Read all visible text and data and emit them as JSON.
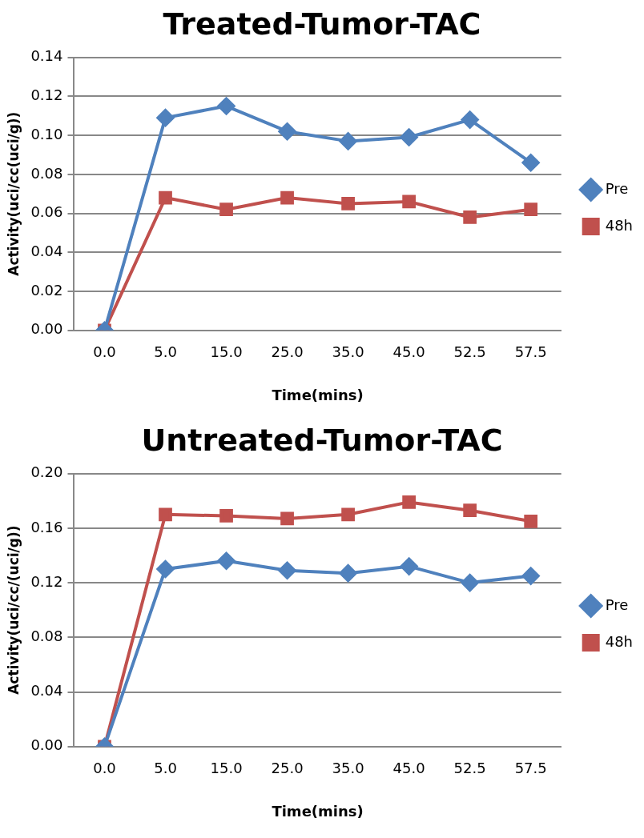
{
  "chart_data": [
    {
      "type": "line",
      "title": "Treated-Tumor-TAC",
      "xlabel": "Time(mins)",
      "ylabel": "Activity(uci/cc(uci/g))",
      "categories": [
        "0.0",
        "5.0",
        "15.0",
        "25.0",
        "35.0",
        "45.0",
        "52.5",
        "57.5"
      ],
      "ylim": [
        0,
        0.14
      ],
      "yticks": [
        {
          "value": 0,
          "label": "0.00"
        },
        {
          "value": 0.02,
          "label": "0.02"
        },
        {
          "value": 0.04,
          "label": "0.04"
        },
        {
          "value": 0.06,
          "label": "0.06"
        },
        {
          "value": 0.08,
          "label": "0.08"
        },
        {
          "value": 0.1,
          "label": "0.10"
        },
        {
          "value": 0.12,
          "label": "0.12"
        },
        {
          "value": 0.14,
          "label": "0.14"
        }
      ],
      "grid": "y",
      "legend": "right",
      "series": [
        {
          "name": "Pre",
          "color": "#4f81bd",
          "marker": "diamond",
          "values": [
            0,
            0.109,
            0.115,
            0.102,
            0.097,
            0.099,
            0.108,
            0.086
          ]
        },
        {
          "name": "48h",
          "color": "#c0504d",
          "marker": "square",
          "values": [
            0,
            0.068,
            0.062,
            0.068,
            0.065,
            0.066,
            0.058,
            0.062
          ]
        }
      ]
    },
    {
      "type": "line",
      "title": "Untreated-Tumor-TAC",
      "xlabel": "Time(mins)",
      "ylabel": "Activity(uci/cc/(uci/g))",
      "categories": [
        "0.0",
        "5.0",
        "15.0",
        "25.0",
        "35.0",
        "45.0",
        "52.5",
        "57.5"
      ],
      "ylim": [
        0,
        0.2
      ],
      "yticks": [
        {
          "value": 0,
          "label": "0.00"
        },
        {
          "value": 0.04,
          "label": "0.04"
        },
        {
          "value": 0.08,
          "label": "0.08"
        },
        {
          "value": 0.12,
          "label": "0.12"
        },
        {
          "value": 0.16,
          "label": "0.16"
        },
        {
          "value": 0.2,
          "label": "0.20"
        }
      ],
      "grid": "y",
      "legend": "right",
      "series": [
        {
          "name": "Pre",
          "color": "#4f81bd",
          "marker": "diamond",
          "values": [
            0,
            0.13,
            0.136,
            0.129,
            0.127,
            0.132,
            0.12,
            0.125
          ]
        },
        {
          "name": "48h",
          "color": "#c0504d",
          "marker": "square",
          "values": [
            0,
            0.17,
            0.169,
            0.167,
            0.17,
            0.179,
            0.173,
            0.165
          ]
        }
      ]
    }
  ]
}
